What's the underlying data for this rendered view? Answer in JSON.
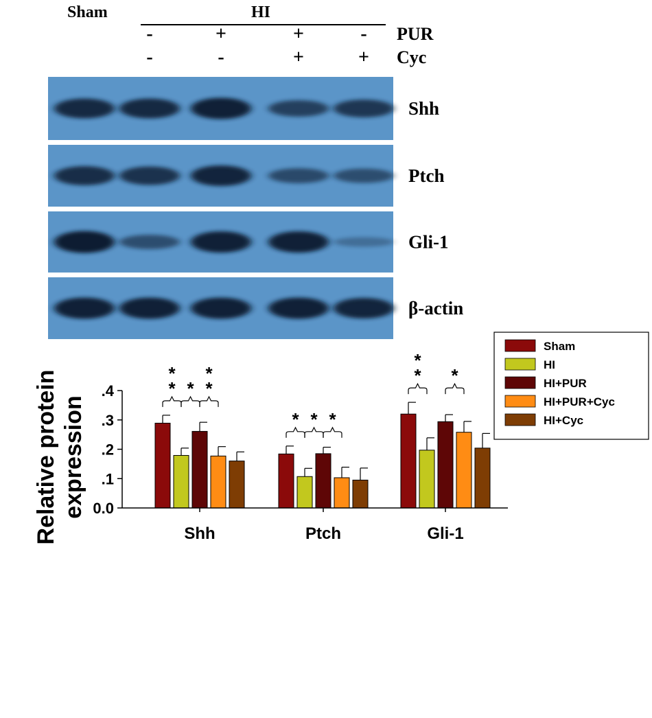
{
  "blot": {
    "group_sham": "Sham",
    "group_hi": "HI",
    "treatments": [
      {
        "label": "PUR",
        "signs": [
          "-",
          "-",
          "+",
          "+",
          "-"
        ]
      },
      {
        "label": "Cyc",
        "signs": [
          "-",
          "-",
          "-",
          "+",
          "+"
        ]
      }
    ],
    "panels": [
      {
        "label": "Shh",
        "intensity": [
          0.85,
          0.85,
          0.95,
          0.6,
          0.7
        ]
      },
      {
        "label": "Ptch",
        "intensity": [
          0.8,
          0.75,
          0.9,
          0.5,
          0.45
        ]
      },
      {
        "label": "Gli-1",
        "intensity": [
          1.0,
          0.45,
          0.95,
          0.95,
          0.1
        ]
      },
      {
        "label": "β-actin",
        "intensity": [
          0.95,
          0.95,
          0.95,
          0.95,
          0.9
        ]
      }
    ]
  },
  "chart_data": {
    "type": "bar",
    "categories": [
      "Shh",
      "Ptch",
      "Gli-1"
    ],
    "ylabel": "Relative protein expression",
    "ylim": [
      0,
      0.4
    ],
    "yticks": [
      0,
      0.1,
      0.2,
      0.3,
      0.4
    ],
    "ytick_labels": [
      "0.0",
      ".1",
      ".2",
      ".3",
      ".4"
    ],
    "legend_position": "top-right",
    "grid": false,
    "series": [
      {
        "name": "Sham",
        "color": "#8b0a0a",
        "values": [
          0.289,
          0.184,
          0.32
        ],
        "errors": [
          0.027,
          0.027,
          0.04
        ]
      },
      {
        "name": "HI",
        "color": "#c2c81e",
        "values": [
          0.179,
          0.107,
          0.197
        ],
        "errors": [
          0.025,
          0.028,
          0.042
        ]
      },
      {
        "name": "HI+PUR",
        "color": "#5e0606",
        "values": [
          0.261,
          0.185,
          0.294
        ],
        "errors": [
          0.031,
          0.022,
          0.024
        ]
      },
      {
        "name": "HI+PUR+Cyc",
        "color": "#ff8c14",
        "values": [
          0.177,
          0.103,
          0.258
        ],
        "errors": [
          0.032,
          0.036,
          0.037
        ]
      },
      {
        "name": "HI+Cyc",
        "color": "#7e3d04",
        "values": [
          0.16,
          0.095,
          0.204
        ],
        "errors": [
          0.031,
          0.041,
          0.05
        ]
      }
    ],
    "significance": [
      {
        "category": 0,
        "from": 0,
        "to": 1,
        "marks": "* *"
      },
      {
        "category": 0,
        "from": 1,
        "to": 2,
        "marks": "*"
      },
      {
        "category": 0,
        "from": 2,
        "to": 3,
        "marks": "* *"
      },
      {
        "category": 1,
        "from": 0,
        "to": 1,
        "marks": "*"
      },
      {
        "category": 1,
        "from": 1,
        "to": 2,
        "marks": "*"
      },
      {
        "category": 1,
        "from": 2,
        "to": 3,
        "marks": "*"
      },
      {
        "category": 2,
        "from": 0,
        "to": 1,
        "marks": "* *"
      },
      {
        "category": 2,
        "from": 2,
        "to": 3,
        "marks": "*"
      }
    ]
  }
}
